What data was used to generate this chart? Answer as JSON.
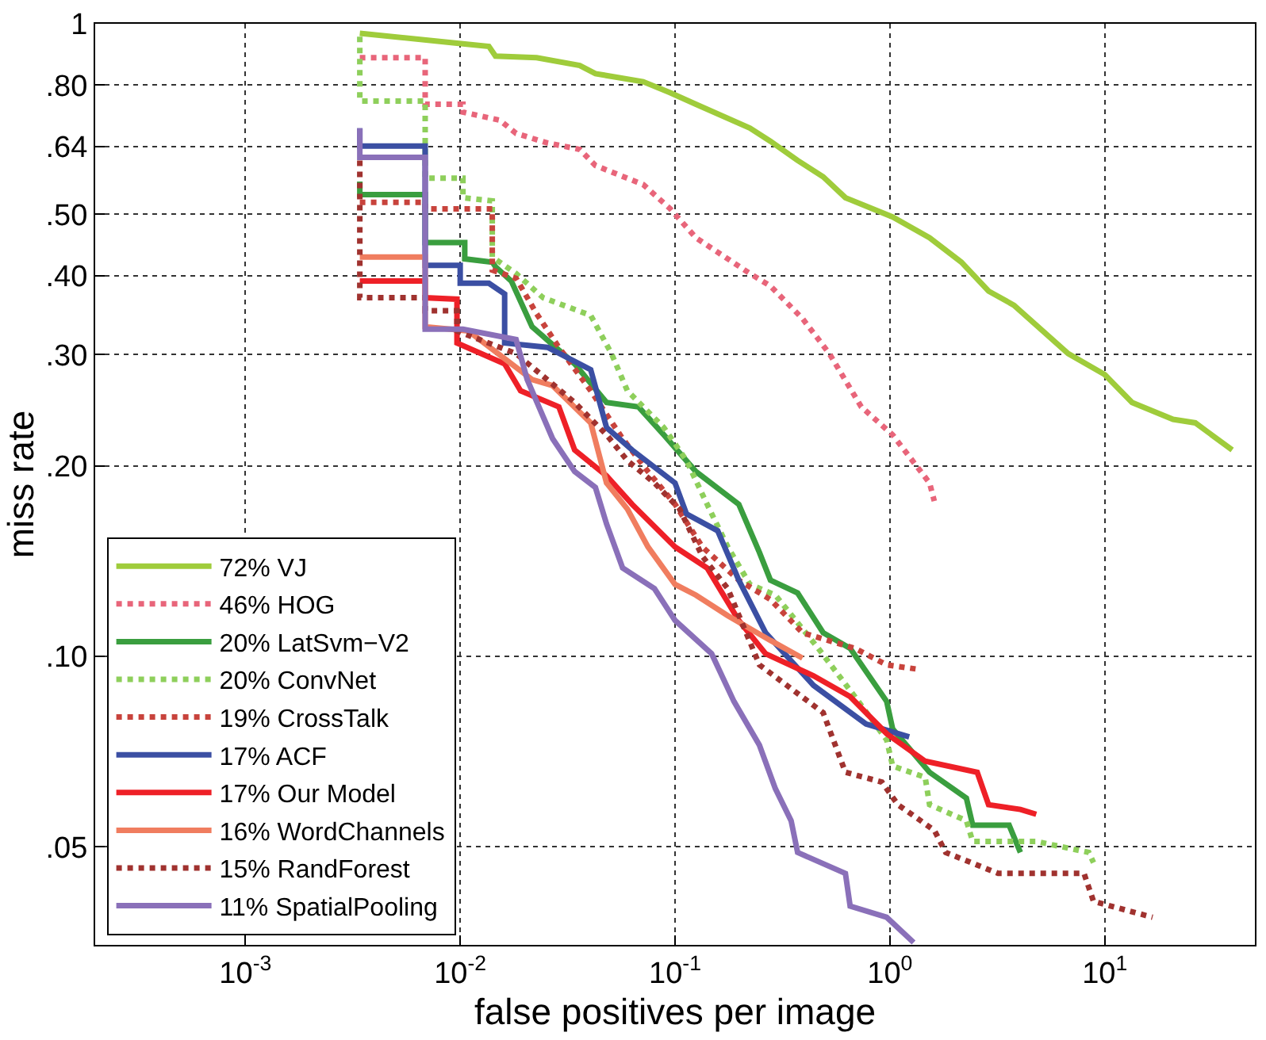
{
  "chart_data": {
    "type": "line",
    "xlabel": "false positives per image",
    "ylabel": "miss rate",
    "log": "xy",
    "grid": true,
    "legend": "bottom left",
    "marker": "none",
    "xlim": [
      0.0002,
      50
    ],
    "ylim": [
      0.035,
      1
    ],
    "xticks": [
      {
        "value": 0.001,
        "label": "10$^{-3}$"
      },
      {
        "value": 0.01,
        "label": "10$^{-2}$"
      },
      {
        "value": 0.1,
        "label": "10$^{-1}$"
      },
      {
        "value": 1,
        "label": "10$^{0}$"
      },
      {
        "value": 10,
        "label": "10$^{1}$"
      }
    ],
    "yticks": [
      {
        "value": 0.05,
        "label": ".05"
      },
      {
        "value": 0.1,
        "label": ".10"
      },
      {
        "value": 0.2,
        "label": ".20"
      },
      {
        "value": 0.3,
        "label": ".30"
      },
      {
        "value": 0.4,
        "label": ".40"
      },
      {
        "value": 0.5,
        "label": ".50"
      },
      {
        "value": 0.64,
        "label": ".64"
      },
      {
        "value": 0.8,
        "label": ".80"
      },
      1
    ],
    "series": [
      {
        "name": "72% VJ",
        "color": "#9fcc3b",
        "line_style": "solid",
        "x": [
          0.00341,
          0.00966,
          0.0136,
          0.0146,
          0.0227,
          0.036,
          0.0426,
          0.0711,
          0.095,
          0.125,
          0.223,
          0.278,
          0.372,
          0.489,
          0.621,
          1.03,
          1.53,
          2.15,
          2.88,
          3.78,
          6.76,
          10,
          13.4,
          20.8,
          26.4,
          39.2
        ],
        "values": [
          0.966,
          0.932,
          0.921,
          0.889,
          0.884,
          0.859,
          0.834,
          0.81,
          0.778,
          0.746,
          0.684,
          0.652,
          0.608,
          0.573,
          0.531,
          0.495,
          0.459,
          0.42,
          0.378,
          0.359,
          0.301,
          0.279,
          0.252,
          0.237,
          0.234,
          0.212
        ]
      },
      {
        "name": "46% HOG",
        "color": "#e8657a",
        "line_style": "dotted",
        "x": [
          0.00341,
          0.00687,
          0.00687,
          0.0103,
          0.0103,
          0.0153,
          0.0182,
          0.0255,
          0.036,
          0.0426,
          0.0711,
          0.095,
          0.125,
          0.223,
          0.278,
          0.392,
          0.523,
          0.736,
          1.03,
          1.53,
          1.61
        ],
        "values": [
          0.884,
          0.884,
          0.746,
          0.746,
          0.725,
          0.704,
          0.671,
          0.648,
          0.633,
          0.597,
          0.557,
          0.51,
          0.459,
          0.403,
          0.385,
          0.342,
          0.301,
          0.248,
          0.224,
          0.188,
          0.176
        ]
      },
      {
        "name": "20% LatSvm−V2",
        "color": "#3a9e3f",
        "line_style": "solid",
        "x": [
          0.00341,
          0.00341,
          0.00687,
          0.00687,
          0.0105,
          0.0105,
          0.0141,
          0.0146,
          0.0173,
          0.0216,
          0.0341,
          0.048,
          0.0676,
          0.0887,
          0.125,
          0.198,
          0.247,
          0.278,
          0.372,
          0.489,
          0.653,
          0.966,
          1.03,
          1.53,
          2.27,
          2.43,
          3.59,
          4.05
        ],
        "values": [
          0.563,
          0.537,
          0.537,
          0.451,
          0.451,
          0.425,
          0.42,
          0.413,
          0.392,
          0.332,
          0.29,
          0.252,
          0.248,
          0.224,
          0.196,
          0.174,
          0.146,
          0.132,
          0.126,
          0.109,
          0.103,
          0.0849,
          0.0768,
          0.0656,
          0.0597,
          0.0541,
          0.0541,
          0.049
        ]
      },
      {
        "name": "20% ConvNet",
        "color": "#8ecf5b",
        "line_style": "dotted",
        "x": [
          0.00341,
          0.00341,
          0.00687,
          0.00687,
          0.0103,
          0.0103,
          0.0141,
          0.0141,
          0.0182,
          0.0243,
          0.0405,
          0.0506,
          0.06,
          0.0887,
          0.113,
          0.141,
          0.176,
          0.223,
          0.293,
          0.464,
          0.687,
          0.966,
          1.03,
          1.46,
          1.53,
          2.27,
          2.43,
          4.8,
          8.43,
          8.87
        ],
        "values": [
          0.954,
          0.755,
          0.755,
          0.57,
          0.57,
          0.531,
          0.525,
          0.428,
          0.403,
          0.369,
          0.346,
          0.301,
          0.263,
          0.23,
          0.204,
          0.174,
          0.149,
          0.13,
          0.125,
          0.103,
          0.0864,
          0.0738,
          0.0671,
          0.0644,
          0.0583,
          0.055,
          0.051,
          0.051,
          0.049,
          0.0472
        ]
      },
      {
        "name": "19% CrossTalk",
        "color": "#c8433c",
        "line_style": "dotted",
        "x": [
          0.00341,
          0.00687,
          0.00687,
          0.0141,
          0.0141,
          0.0182,
          0.0227,
          0.0288,
          0.0405,
          0.057,
          0.0748,
          0.1,
          0.134,
          0.198,
          0.278,
          0.392,
          0.687,
          0.966,
          1.36
        ],
        "values": [
          0.522,
          0.522,
          0.51,
          0.51,
          0.408,
          0.396,
          0.348,
          0.308,
          0.263,
          0.221,
          0.196,
          0.174,
          0.149,
          0.132,
          0.123,
          0.109,
          0.103,
          0.097,
          0.0954
        ]
      },
      {
        "name": "17% ACF",
        "color": "#3b4fa3",
        "line_style": "solid",
        "x": [
          0.00341,
          0.00341,
          0.00687,
          0.00687,
          0.01,
          0.01,
          0.0136,
          0.0161,
          0.0161,
          0.0255,
          0.0405,
          0.048,
          0.0631,
          0.1,
          0.113,
          0.158,
          0.198,
          0.264,
          0.441,
          0.774,
          1.23
        ],
        "values": [
          0.684,
          0.641,
          0.641,
          0.415,
          0.415,
          0.389,
          0.389,
          0.374,
          0.313,
          0.308,
          0.284,
          0.23,
          0.212,
          0.188,
          0.168,
          0.158,
          0.132,
          0.109,
          0.09,
          0.0782,
          0.0746
        ]
      },
      {
        "name": "17% Our Model",
        "color": "#ee2027",
        "line_style": "solid",
        "x": [
          0.00341,
          0.00687,
          0.00687,
          0.00966,
          0.00966,
          0.0161,
          0.0191,
          0.0288,
          0.0341,
          0.048,
          0.0631,
          0.1,
          0.141,
          0.198,
          0.264,
          0.441,
          0.653,
          0.966,
          1.46,
          2.55,
          2.88,
          4.05,
          4.8
        ],
        "values": [
          0.392,
          0.392,
          0.369,
          0.367,
          0.313,
          0.29,
          0.263,
          0.248,
          0.212,
          0.193,
          0.174,
          0.149,
          0.138,
          0.114,
          0.101,
          0.0932,
          0.0864,
          0.0755,
          0.0683,
          0.0656,
          0.0583,
          0.0573,
          0.0563
        ]
      },
      {
        "name": "16% WordChannels",
        "color": "#f07d5f",
        "line_style": "solid",
        "x": [
          0.00341,
          0.00687,
          0.00687,
          0.0109,
          0.0216,
          0.0269,
          0.0405,
          0.048,
          0.06,
          0.0748,
          0.1,
          0.125,
          0.176,
          0.278,
          0.392
        ],
        "values": [
          0.428,
          0.428,
          0.332,
          0.327,
          0.274,
          0.268,
          0.234,
          0.188,
          0.171,
          0.149,
          0.13,
          0.125,
          0.116,
          0.106,
          0.0994
        ]
      },
      {
        "name": "15% RandForest",
        "color": "#a0322f",
        "line_style": "dotted",
        "x": [
          0.00341,
          0.00341,
          0.00687,
          0.00687,
          0.00966,
          0.00966,
          0.0182,
          0.0341,
          0.048,
          0.06,
          0.0802,
          0.105,
          0.134,
          0.176,
          0.247,
          0.489,
          0.621,
          0.918,
          1.09,
          1.61,
          1.82,
          3.19,
          8.01,
          8.87,
          16.7
        ],
        "values": [
          0.608,
          0.369,
          0.369,
          0.352,
          0.352,
          0.327,
          0.301,
          0.252,
          0.224,
          0.204,
          0.188,
          0.171,
          0.144,
          0.128,
          0.097,
          0.0815,
          0.0656,
          0.0633,
          0.0583,
          0.0531,
          0.049,
          0.0454,
          0.0454,
          0.041,
          0.0387
        ]
      },
      {
        "name": "11% SpatialPooling",
        "color": "#8a70b9",
        "line_style": "solid",
        "x": [
          0.00341,
          0.00341,
          0.00687,
          0.00687,
          0.0103,
          0.0182,
          0.0205,
          0.0269,
          0.0341,
          0.0426,
          0.048,
          0.057,
          0.0802,
          0.1,
          0.148,
          0.188,
          0.247,
          0.293,
          0.347,
          0.372,
          0.621,
          0.653,
          0.966,
          1.29
        ],
        "values": [
          0.684,
          0.615,
          0.615,
          0.329,
          0.329,
          0.317,
          0.274,
          0.221,
          0.196,
          0.185,
          0.162,
          0.138,
          0.128,
          0.114,
          0.101,
          0.0849,
          0.0724,
          0.0618,
          0.055,
          0.049,
          0.0454,
          0.0403,
          0.0387,
          0.0353
        ]
      }
    ]
  }
}
